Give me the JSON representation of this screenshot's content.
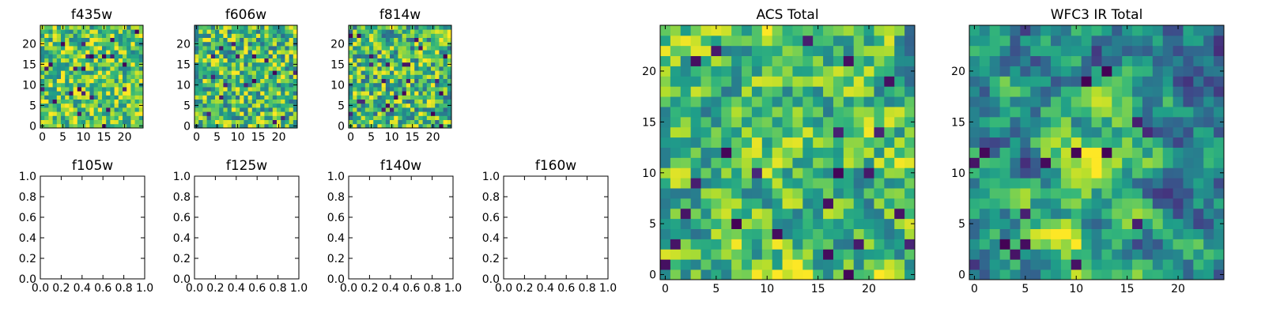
{
  "figure": {
    "colormap": "viridis",
    "background": "#ffffff"
  },
  "chart_data": [
    {
      "id": "f435w",
      "type": "heatmap",
      "title": "f435w",
      "grid": false,
      "rows": 25,
      "cols": 25,
      "xlim": [
        -0.5,
        24.5
      ],
      "ylim": [
        -0.5,
        24.5
      ],
      "xticks": [
        0,
        5,
        10,
        15,
        20
      ],
      "yticks": [
        0,
        5,
        10,
        15,
        20
      ],
      "xticklabels": [
        "0",
        "5",
        "10",
        "15",
        "20"
      ],
      "yticklabels": [
        "0",
        "5",
        "10",
        "15",
        "20"
      ],
      "values": "approximate per-pixel flux (0–1 scale) rendered with the viridis colormap",
      "seed": 11,
      "smooth": 0,
      "mean": 0.73,
      "spread": 0.18,
      "dark_fraction": 0.035
    },
    {
      "id": "f606w",
      "type": "heatmap",
      "title": "f606w",
      "grid": false,
      "rows": 25,
      "cols": 25,
      "xlim": [
        -0.5,
        24.5
      ],
      "ylim": [
        -0.5,
        24.5
      ],
      "xticks": [
        0,
        5,
        10,
        15,
        20
      ],
      "yticks": [
        0,
        5,
        10,
        15,
        20
      ],
      "xticklabels": [
        "0",
        "5",
        "10",
        "15",
        "20"
      ],
      "yticklabels": [
        "0",
        "5",
        "10",
        "15",
        "20"
      ],
      "values": "approximate per-pixel flux (0–1 scale) rendered with the viridis colormap",
      "seed": 23,
      "smooth": 0,
      "mean": 0.68,
      "spread": 0.2,
      "dark_fraction": 0.03
    },
    {
      "id": "f814w",
      "type": "heatmap",
      "title": "f814w",
      "grid": false,
      "rows": 25,
      "cols": 25,
      "xlim": [
        -0.5,
        24.5
      ],
      "ylim": [
        -0.5,
        24.5
      ],
      "xticks": [
        0,
        5,
        10,
        15,
        20
      ],
      "yticks": [
        0,
        5,
        10,
        15,
        20
      ],
      "xticklabels": [
        "0",
        "5",
        "10",
        "15",
        "20"
      ],
      "yticklabels": [
        "0",
        "5",
        "10",
        "15",
        "20"
      ],
      "values": "approximate per-pixel flux (0–1 scale) rendered with the viridis colormap",
      "seed": 37,
      "smooth": 0,
      "mean": 0.68,
      "spread": 0.2,
      "dark_fraction": 0.03
    },
    {
      "id": "f105w",
      "type": "empty",
      "title": "f105w",
      "xlim": [
        0,
        1
      ],
      "ylim": [
        0,
        1
      ],
      "xticklabels": [
        "0.0",
        "0.2",
        "0.4",
        "0.6",
        "0.8",
        "1.0"
      ],
      "yticklabels": [
        "0.0",
        "0.2",
        "0.4",
        "0.6",
        "0.8",
        "1.0"
      ]
    },
    {
      "id": "f125w",
      "type": "empty",
      "title": "f125w",
      "xlim": [
        0,
        1
      ],
      "ylim": [
        0,
        1
      ],
      "xticklabels": [
        "0.0",
        "0.2",
        "0.4",
        "0.6",
        "0.8",
        "1.0"
      ],
      "yticklabels": [
        "0.0",
        "0.2",
        "0.4",
        "0.6",
        "0.8",
        "1.0"
      ]
    },
    {
      "id": "f140w",
      "type": "empty",
      "title": "f140w",
      "xlim": [
        0,
        1
      ],
      "ylim": [
        0,
        1
      ],
      "xticklabels": [
        "0.0",
        "0.2",
        "0.4",
        "0.6",
        "0.8",
        "1.0"
      ],
      "yticklabels": [
        "0.0",
        "0.2",
        "0.4",
        "0.6",
        "0.8",
        "1.0"
      ]
    },
    {
      "id": "f160w",
      "type": "empty",
      "title": "f160w",
      "xlim": [
        0,
        1
      ],
      "ylim": [
        0,
        1
      ],
      "xticklabels": [
        "0.0",
        "0.2",
        "0.4",
        "0.6",
        "0.8",
        "1.0"
      ],
      "yticklabels": [
        "0.0",
        "0.2",
        "0.4",
        "0.6",
        "0.8",
        "1.0"
      ]
    },
    {
      "id": "acs-total",
      "type": "heatmap",
      "title": "ACS Total",
      "grid": false,
      "rows": 25,
      "cols": 25,
      "xlim": [
        -0.5,
        24.5
      ],
      "ylim": [
        -0.5,
        24.5
      ],
      "xticks": [
        0,
        5,
        10,
        15,
        20
      ],
      "yticks": [
        0,
        5,
        10,
        15,
        20
      ],
      "xticklabels": [
        "0",
        "5",
        "10",
        "15",
        "20"
      ],
      "yticklabels": [
        "0",
        "5",
        "10",
        "15",
        "20"
      ],
      "values": "approximate per-pixel summed ACS flux (0–1 scale), viridis colormap",
      "seed": 53,
      "smooth": 1,
      "mean": 0.68,
      "spread": 0.17,
      "dark_fraction": 0.025
    },
    {
      "id": "wfc3-ir-total",
      "type": "heatmap",
      "title": "WFC3 IR Total",
      "grid": false,
      "rows": 25,
      "cols": 25,
      "xlim": [
        -0.5,
        24.5
      ],
      "ylim": [
        -0.5,
        24.5
      ],
      "xticks": [
        0,
        5,
        10,
        15,
        20
      ],
      "yticks": [
        0,
        5,
        10,
        15,
        20
      ],
      "xticklabels": [
        "0",
        "5",
        "10",
        "15",
        "20"
      ],
      "yticklabels": [
        "0",
        "5",
        "10",
        "15",
        "20"
      ],
      "values": "approximate per-pixel summed IR flux (0–1 scale), viridis colormap",
      "seed": 71,
      "smooth": 2,
      "mean": 0.5,
      "spread": 0.17,
      "dark_fraction": 0.02,
      "bright_spots": [
        {
          "x": 13,
          "y": 12,
          "amp": 0.32,
          "sigma": 2.4
        },
        {
          "x": 9,
          "y": 2,
          "amp": 0.3,
          "sigma": 3.0
        }
      ]
    }
  ]
}
